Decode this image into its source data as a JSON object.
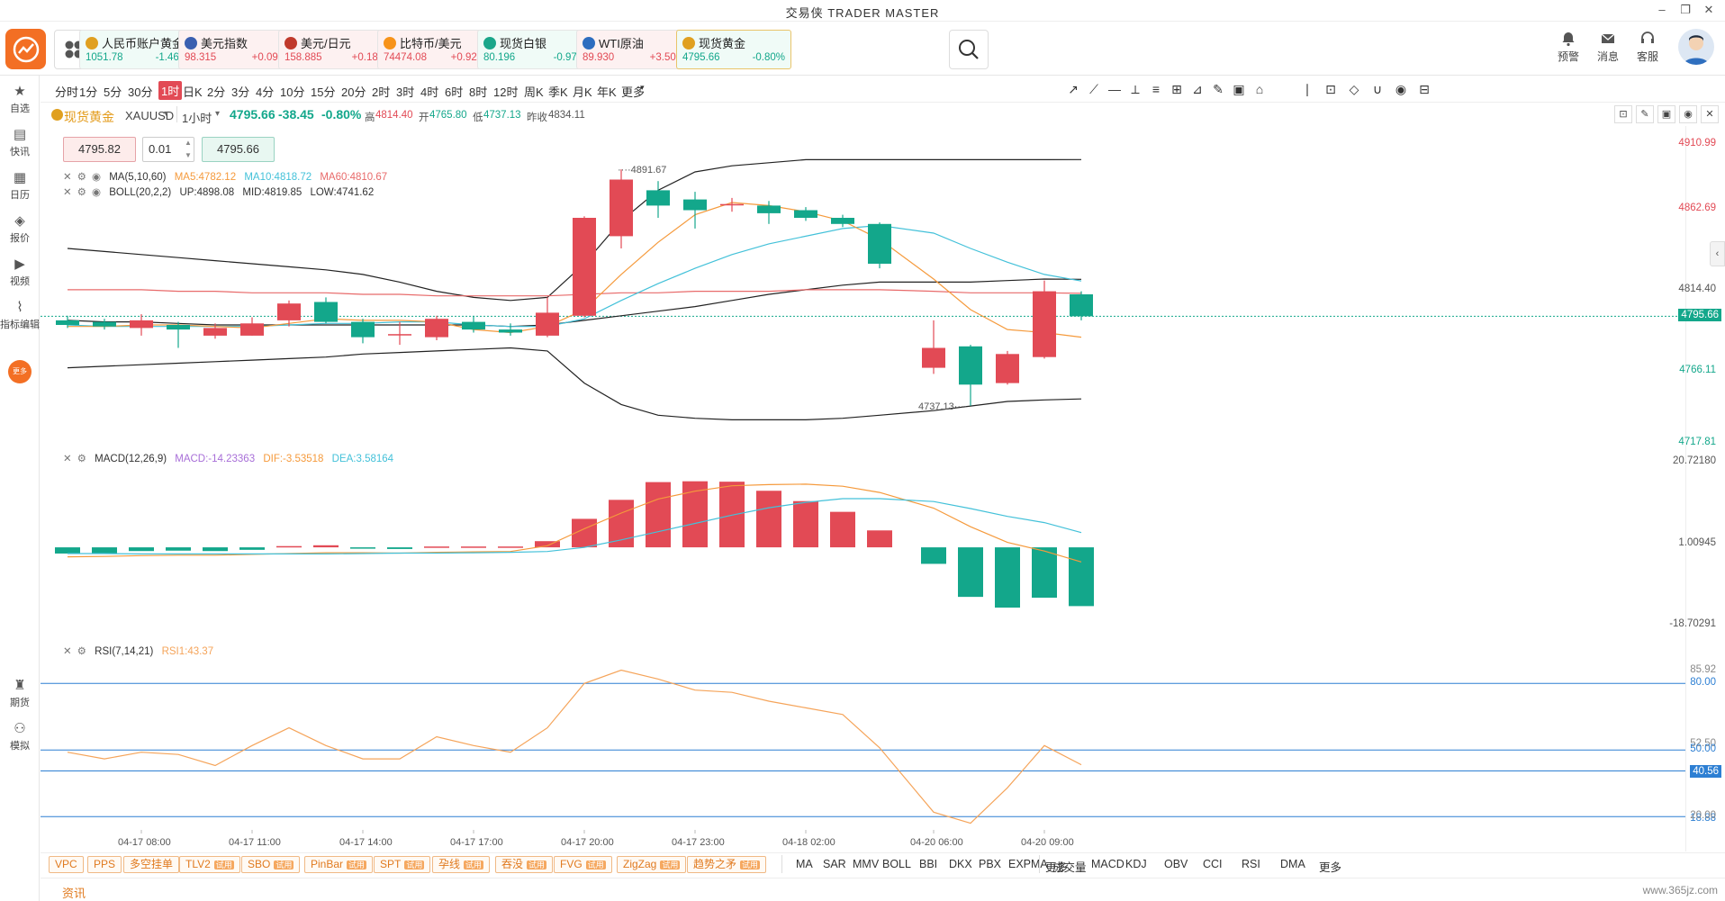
{
  "app": {
    "title": "交易侠  TRADER MASTER"
  },
  "tickers": [
    {
      "name": "人民币账户黄金",
      "price": "1051.78",
      "change": "-1.46%",
      "dir": "down",
      "color": "#e0a020"
    },
    {
      "name": "美元指数",
      "price": "98.315",
      "change": "+0.09%",
      "dir": "up",
      "color": "#3a5fb0"
    },
    {
      "name": "美元/日元",
      "price": "158.885",
      "change": "+0.18%",
      "dir": "up",
      "color": "#c0392b"
    },
    {
      "name": "比特币/美元",
      "price": "74474.08",
      "change": "+0.92%",
      "dir": "up",
      "color": "#f7931a"
    },
    {
      "name": "现货白银",
      "price": "80.196",
      "change": "-0.97%",
      "dir": "down",
      "color": "#1aa68a"
    },
    {
      "name": "WTI原油",
      "price": "89.930",
      "change": "+3.50%",
      "dir": "up",
      "color": "#2d6dbf"
    },
    {
      "name": "现货黄金",
      "price": "4795.66",
      "change": "-0.80%",
      "dir": "down",
      "color": "#e0a020"
    }
  ],
  "header_tools": [
    {
      "label": "预警",
      "icon": "bell-icon"
    },
    {
      "label": "消息",
      "icon": "mail-icon"
    },
    {
      "label": "客服",
      "icon": "headset-icon"
    }
  ],
  "sidebar": [
    {
      "label": "自选",
      "icon": "star-doc-icon"
    },
    {
      "label": "快讯",
      "icon": "news-icon"
    },
    {
      "label": "日历",
      "icon": "calendar-icon"
    },
    {
      "label": "报价",
      "icon": "quote-icon"
    },
    {
      "label": "视频",
      "icon": "video-icon"
    },
    {
      "label": "指标编辑",
      "icon": "indicator-edit-icon"
    },
    {
      "label": "更多",
      "icon": "more-circle-icon"
    },
    {
      "label": "期货",
      "icon": "futures-icon"
    },
    {
      "label": "模拟",
      "icon": "gamepad-icon"
    }
  ],
  "timeframes": [
    "分时",
    "1分",
    "5分",
    "30分",
    "1时",
    "日K",
    "2分",
    "3分",
    "4分",
    "10分",
    "15分",
    "20分",
    "2时",
    "3时",
    "4时",
    "6时",
    "8时",
    "12时",
    "周K",
    "季K",
    "月K",
    "年K",
    "更多"
  ],
  "active_timeframe": "1时",
  "symbol": {
    "name": "现货黄金",
    "code": "XAUUSD",
    "interval": "1小时",
    "price": "4795.66",
    "change": "-38.45",
    "pct": "-0.80%",
    "high_label": "高",
    "high": "4814.40",
    "open_label": "开",
    "open": "4765.80",
    "low_label": "低",
    "low": "4737.13",
    "prev_label": "昨收",
    "prev": "4834.11"
  },
  "trade": {
    "bid": "4795.82",
    "lot": "0.01",
    "ask": "4795.66"
  },
  "ma_legend": {
    "name": "MA(5,10,60)",
    "ma5": "MA5:4782.12",
    "ma10": "MA10:4818.72",
    "ma60": "MA60:4810.67"
  },
  "boll_legend": {
    "name": "BOLL(20,2,2)",
    "up": "UP:4898.08",
    "mid": "MID:4819.85",
    "low": "LOW:4741.62"
  },
  "macd_legend": {
    "name": "MACD(12,26,9)",
    "macd": "MACD:-14.23363",
    "dif": "DIF:-3.53518",
    "dea": "DEA:3.58164"
  },
  "rsi_legend": {
    "name": "RSI(7,14,21)",
    "rsi1": "RSI1:43.37"
  },
  "price_axis": [
    "4910.99",
    "4862.69",
    "4814.40",
    "4766.11",
    "4717.81"
  ],
  "price_badge": "4795.66",
  "macd_axis": [
    "20.72180",
    "1.00945",
    "-18.70291"
  ],
  "rsi_axis": [
    "85.92",
    "80.00",
    "52.50",
    "50.00",
    "40.56",
    "18.88",
    "20.00"
  ],
  "time_axis": [
    "04-17 08:00",
    "04-17 11:00",
    "04-17 14:00",
    "04-17 17:00",
    "04-17 20:00",
    "04-17 23:00",
    "04-18 02:00",
    "04-20 06:00",
    "04-20 09:00"
  ],
  "annotations": {
    "high": "4891.67",
    "low": "4737.13"
  },
  "chart_data": [
    {
      "type": "candlestick",
      "title": "现货黄金 XAUUSD 1小时",
      "candles": [
        {
          "o": 4793,
          "c": 4790,
          "h": 4796,
          "l": 4788
        },
        {
          "o": 4792,
          "c": 4789,
          "h": 4794,
          "l": 4787
        },
        {
          "o": 4788,
          "c": 4793,
          "h": 4797,
          "l": 4783
        },
        {
          "o": 4790,
          "c": 4787,
          "h": 4792,
          "l": 4775
        },
        {
          "o": 4783,
          "c": 4788,
          "h": 4791,
          "l": 4781
        },
        {
          "o": 4783,
          "c": 4791,
          "h": 4795,
          "l": 4783
        },
        {
          "o": 4793,
          "c": 4804,
          "h": 4806,
          "l": 4789
        },
        {
          "o": 4805,
          "c": 4792,
          "h": 4808,
          "l": 4791
        },
        {
          "o": 4792,
          "c": 4782,
          "h": 4794,
          "l": 4778
        },
        {
          "o": 4784,
          "c": 4784,
          "h": 4792,
          "l": 4777
        },
        {
          "o": 4782,
          "c": 4794,
          "h": 4796,
          "l": 4780
        },
        {
          "o": 4792,
          "c": 4787,
          "h": 4796,
          "l": 4785
        },
        {
          "o": 4787,
          "c": 4785,
          "h": 4791,
          "l": 4783
        },
        {
          "o": 4783,
          "c": 4798,
          "h": 4808,
          "l": 4782
        },
        {
          "o": 4796,
          "c": 4860,
          "h": 4861,
          "l": 4795
        },
        {
          "o": 4848,
          "c": 4885,
          "h": 4891.67,
          "l": 4840
        },
        {
          "o": 4878,
          "c": 4868,
          "h": 4884,
          "l": 4860
        },
        {
          "o": 4872,
          "c": 4865,
          "h": 4877,
          "l": 4853
        },
        {
          "o": 4869,
          "c": 4869,
          "h": 4873,
          "l": 4864
        },
        {
          "o": 4868,
          "c": 4863,
          "h": 4871,
          "l": 4856
        },
        {
          "o": 4865,
          "c": 4860,
          "h": 4867,
          "l": 4858
        },
        {
          "o": 4860,
          "c": 4856,
          "h": 4862,
          "l": 4854
        },
        {
          "o": 4856,
          "c": 4830,
          "h": 4857,
          "l": 4827
        },
        {
          "o": 4762,
          "c": 4775,
          "h": 4793,
          "l": 4758
        },
        {
          "o": 4776,
          "c": 4751,
          "h": 4777,
          "l": 4737.13
        },
        {
          "o": 4752,
          "c": 4771,
          "h": 4773,
          "l": 4751
        },
        {
          "o": 4769,
          "c": 4812,
          "h": 4819,
          "l": 4768
        },
        {
          "o": 4810,
          "c": 4795.66,
          "h": 4812,
          "l": 4793
        }
      ],
      "ma5": [
        4789,
        4789,
        4790,
        4790,
        4789,
        4788,
        4791,
        4794,
        4793,
        4793,
        4792,
        4787,
        4785,
        4789,
        4800,
        4823,
        4844,
        4862,
        4870,
        4868,
        4864,
        4858,
        4846,
        4820,
        4800,
        4787,
        4785,
        4782
      ],
      "ma10": [
        4790,
        4789,
        4789,
        4789,
        4789,
        4789,
        4790,
        4791,
        4791,
        4792,
        4792,
        4790,
        4789,
        4789,
        4794,
        4806,
        4817,
        4827,
        4836,
        4843,
        4848,
        4853,
        4855,
        4850,
        4840,
        4831,
        4823,
        4818.72
      ],
      "ma60": [
        4813,
        4813,
        4813,
        4812,
        4812,
        4811,
        4811,
        4811,
        4810,
        4810,
        4809,
        4809,
        4809,
        4809,
        4810,
        4811,
        4811,
        4812,
        4812,
        4812,
        4813,
        4813,
        4813,
        4812,
        4811,
        4811,
        4811,
        4810.67
      ],
      "boll_up": [
        4840,
        4838,
        4836,
        4834,
        4832,
        4830,
        4828,
        4826,
        4823,
        4818,
        4812,
        4808,
        4806,
        4808,
        4830,
        4858,
        4878,
        4890,
        4894,
        4896,
        4898,
        4898,
        4898,
        4898,
        4898,
        4898,
        4898,
        4898.08
      ],
      "boll_mid": [
        4793,
        4792,
        4792,
        4791,
        4790,
        4790,
        4790,
        4790,
        4790,
        4790,
        4790,
        4790,
        4789,
        4790,
        4793,
        4796,
        4799,
        4802,
        4806,
        4810,
        4813,
        4816,
        4818,
        4818,
        4818,
        4819,
        4820,
        4819.85
      ],
      "boll_low": [
        4762,
        4763,
        4764,
        4765,
        4766,
        4767,
        4768,
        4769,
        4771,
        4772,
        4773,
        4774,
        4775,
        4773,
        4752,
        4738,
        4731,
        4729,
        4728,
        4728,
        4728,
        4729,
        4731,
        4734,
        4737,
        4740,
        4741,
        4741.62
      ]
    },
    {
      "type": "bar",
      "title": "MACD(12,26,9)",
      "macd": [
        -1.5,
        -1.4,
        -0.9,
        -0.8,
        -0.9,
        -0.6,
        0.3,
        0.5,
        -0.1,
        -0.4,
        0.2,
        0.2,
        0.2,
        1.5,
        6.9,
        11.5,
        15.8,
        16.0,
        15.9,
        13.7,
        11.2,
        8.6,
        4.1,
        -4.0,
        -12.0,
        -14.6,
        -12.2,
        -14.23363
      ],
      "dif": [
        -2.3,
        -2.2,
        -2.0,
        -1.9,
        -1.9,
        -1.7,
        -1.5,
        -1.3,
        -1.3,
        -1.4,
        -1.2,
        -1.1,
        -1.0,
        0.4,
        4.5,
        8.3,
        11.7,
        13.6,
        14.9,
        15.2,
        15.3,
        14.8,
        13.3,
        9.5,
        5.0,
        1.2,
        -0.9,
        -3.53518
      ],
      "dea": [
        -1.5,
        -1.5,
        -1.6,
        -1.6,
        -1.6,
        -1.6,
        -1.6,
        -1.6,
        -1.5,
        -1.4,
        -1.4,
        -1.3,
        -1.2,
        -1.0,
        0.0,
        1.8,
        3.8,
        5.8,
        7.8,
        9.6,
        10.9,
        11.8,
        11.8,
        11.1,
        9.4,
        7.5,
        6.0,
        3.58164
      ]
    },
    {
      "type": "line",
      "title": "RSI(7,14,21)",
      "rsi1": [
        49,
        46,
        49,
        48,
        43,
        52,
        60,
        52,
        46,
        46,
        56,
        52,
        49,
        60,
        80,
        86,
        82,
        77,
        76,
        72,
        69,
        66,
        51,
        22,
        17,
        33,
        52,
        43.37
      ],
      "levels": [
        80,
        50,
        40.56,
        20
      ]
    }
  ],
  "plugins": [
    {
      "label": "VPC",
      "trial": false
    },
    {
      "label": "PPS",
      "trial": false
    },
    {
      "label": "多空挂单",
      "trial": false
    },
    {
      "label": "TLV2",
      "trial": true
    },
    {
      "label": "SBO",
      "trial": true
    },
    {
      "label": "PinBar",
      "trial": true
    },
    {
      "label": "SPT",
      "trial": true
    },
    {
      "label": "孕线",
      "trial": true
    },
    {
      "label": "吞没",
      "trial": true
    },
    {
      "label": "FVG",
      "trial": true
    },
    {
      "label": "ZigZag",
      "trial": true
    },
    {
      "label": "趋势之矛",
      "trial": true
    }
  ],
  "trial_label": "试用",
  "main_indicators": [
    "MA",
    "SAR",
    "MMV",
    "BOLL",
    "BBI",
    "DKX",
    "PBX",
    "EXPMA",
    "更多"
  ],
  "sub_indicators": [
    "成交量",
    "MACD",
    "KDJ",
    "OBV",
    "CCI",
    "RSI",
    "DMA",
    "更多"
  ],
  "news_label": "资讯",
  "watermark": "www.365jz.com",
  "colors": {
    "up": "#e24a55",
    "down": "#13a78b",
    "ma5": "#f59a3c",
    "ma10": "#43c1d9",
    "ma60": "#e86a6a",
    "boll": "#222222",
    "dif": "#f59a3c",
    "dea": "#43c1d9",
    "rsi": "#f5a45a",
    "level": "#2d7fd3"
  }
}
